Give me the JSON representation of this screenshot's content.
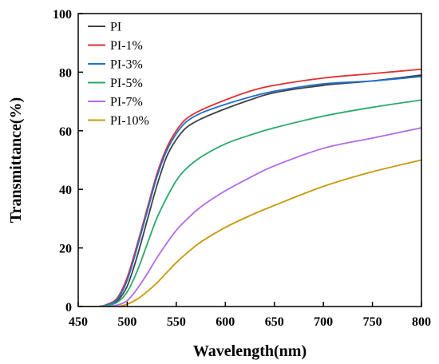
{
  "chart_data": {
    "type": "line",
    "title": "",
    "xlabel": "Wavelength(nm)",
    "ylabel": "Transmittance(%)",
    "xlim": [
      450,
      800
    ],
    "ylim": [
      0,
      100
    ],
    "xticks": [
      450,
      500,
      550,
      600,
      650,
      700,
      750,
      800
    ],
    "yticks": [
      0,
      20,
      40,
      60,
      80,
      100
    ],
    "grid": false,
    "legend_position": "top-left",
    "series": [
      {
        "name": "PI",
        "color": "#404040",
        "x": [
          450,
          470,
          480,
          490,
          500,
          510,
          520,
          530,
          540,
          550,
          560,
          575,
          600,
          625,
          650,
          700,
          750,
          800
        ],
        "y": [
          0,
          0,
          0.5,
          2,
          7,
          17,
          29,
          41,
          51,
          57,
          61,
          64,
          67.5,
          70.5,
          73,
          75.5,
          77,
          79
        ]
      },
      {
        "name": "PI-1%",
        "color": "#e03030",
        "x": [
          450,
          470,
          480,
          490,
          500,
          510,
          520,
          530,
          540,
          550,
          560,
          575,
          600,
          625,
          650,
          700,
          750,
          800
        ],
        "y": [
          0,
          0,
          0.8,
          3,
          10,
          21,
          33,
          45,
          54,
          60,
          64,
          67,
          70.5,
          73.5,
          75.5,
          78,
          79.5,
          81
        ]
      },
      {
        "name": "PI-3%",
        "color": "#1f6fd1",
        "x": [
          450,
          470,
          480,
          490,
          500,
          510,
          520,
          530,
          540,
          550,
          560,
          575,
          600,
          625,
          650,
          700,
          750,
          800
        ],
        "y": [
          0,
          0,
          0.6,
          2.5,
          9,
          20,
          32,
          44,
          53,
          59,
          63,
          66,
          69,
          71.5,
          73.5,
          76,
          77,
          78.5
        ]
      },
      {
        "name": "PI-5%",
        "color": "#2aa86b",
        "x": [
          450,
          470,
          480,
          490,
          500,
          510,
          520,
          530,
          540,
          550,
          560,
          575,
          600,
          625,
          650,
          700,
          750,
          800
        ],
        "y": [
          0,
          0,
          0.3,
          1.5,
          5,
          12,
          21,
          30,
          37,
          43,
          47,
          51,
          55.5,
          58.5,
          61,
          65,
          68,
          70.5
        ]
      },
      {
        "name": "PI-7%",
        "color": "#b36ae6",
        "x": [
          450,
          470,
          480,
          490,
          500,
          510,
          520,
          530,
          540,
          550,
          560,
          575,
          600,
          625,
          650,
          700,
          750,
          800
        ],
        "y": [
          0,
          0,
          0,
          0.5,
          2,
          6,
          11,
          16.5,
          21.5,
          26,
          29.5,
          34,
          39.5,
          44,
          48,
          54,
          57.5,
          61
        ]
      },
      {
        "name": "PI-10%",
        "color": "#c9980a",
        "x": [
          450,
          470,
          480,
          490,
          500,
          510,
          520,
          530,
          540,
          550,
          560,
          575,
          600,
          625,
          650,
          700,
          750,
          800
        ],
        "y": [
          0,
          0,
          0,
          0,
          0.8,
          2.5,
          5,
          8,
          11.5,
          15,
          18,
          22,
          27,
          31,
          34.5,
          41,
          46,
          50
        ]
      }
    ]
  }
}
